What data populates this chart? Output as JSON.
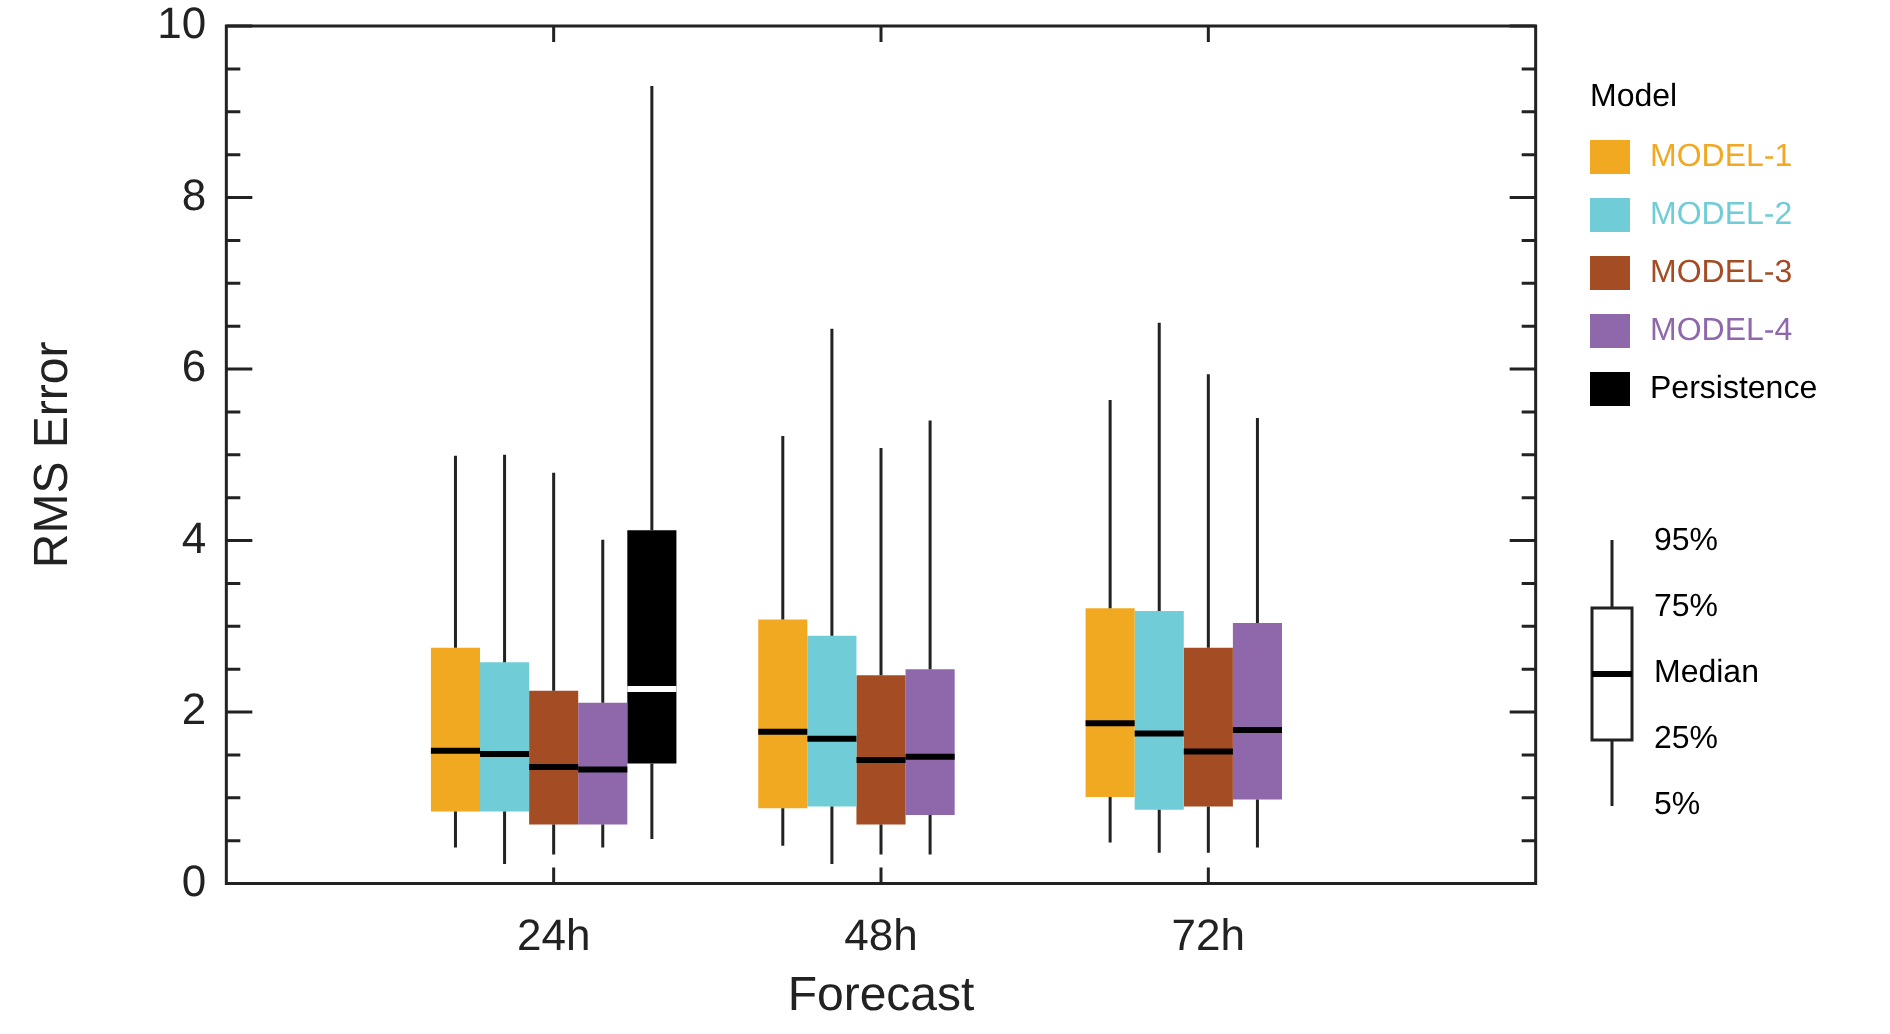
{
  "chart_data": {
    "type": "box",
    "xlabel": "Forecast",
    "ylabel": "RMS Error",
    "legend_title": "Model",
    "legend": "right",
    "categories": [
      "24h",
      "48h",
      "72h"
    ],
    "ylim": [
      0,
      10
    ],
    "yticks": [
      0,
      {
        "value": 0.5,
        "label": null
      },
      2,
      {
        "value": 1,
        "label": null
      },
      {
        "value": 1.5,
        "label": null
      },
      {
        "value": 2.5,
        "label": null
      },
      {
        "value": 3,
        "label": null
      },
      {
        "value": 3.5,
        "label": null
      },
      4,
      {
        "value": 4.5,
        "label": null
      },
      {
        "value": 5,
        "label": null
      },
      {
        "value": 5.5,
        "label": null
      },
      6,
      {
        "value": 6.5,
        "label": null
      },
      {
        "value": 7,
        "label": null
      },
      {
        "value": 7.5,
        "label": null
      },
      8,
      {
        "value": 8.5,
        "label": null
      },
      {
        "value": 9,
        "label": null
      },
      {
        "value": 9.5,
        "label": null
      },
      10
    ],
    "series": [
      {
        "name": "MODEL-1",
        "color": "#f2a922",
        "boxes": [
          {
            "low": 0.42,
            "q1": 0.84,
            "median": 1.55,
            "q3": 2.75,
            "high": 4.99
          },
          {
            "low": 0.44,
            "q1": 0.88,
            "median": 1.77,
            "q3": 3.08,
            "high": 5.22
          },
          {
            "low": 0.48,
            "q1": 1.01,
            "median": 1.87,
            "q3": 3.21,
            "high": 5.64
          }
        ]
      },
      {
        "name": "MODEL-2",
        "color": "#70cdd8",
        "boxes": [
          {
            "low": 0.23,
            "q1": 0.84,
            "median": 1.51,
            "q3": 2.58,
            "high": 5.0
          },
          {
            "low": 0.23,
            "q1": 0.9,
            "median": 1.69,
            "q3": 2.89,
            "high": 6.47
          },
          {
            "low": 0.36,
            "q1": 0.86,
            "median": 1.75,
            "q3": 3.18,
            "high": 6.54
          }
        ]
      },
      {
        "name": "MODEL-3",
        "color": "#a44c24",
        "boxes": [
          {
            "low": 0.34,
            "q1": 0.69,
            "median": 1.36,
            "q3": 2.25,
            "high": 4.79
          },
          {
            "low": 0.34,
            "q1": 0.69,
            "median": 1.44,
            "q3": 2.43,
            "high": 5.08
          },
          {
            "low": 0.36,
            "q1": 0.9,
            "median": 1.54,
            "q3": 2.75,
            "high": 5.94
          }
        ]
      },
      {
        "name": "MODEL-4",
        "color": "#8f68ac",
        "boxes": [
          {
            "low": 0.42,
            "q1": 0.69,
            "median": 1.33,
            "q3": 2.11,
            "high": 4.01
          },
          {
            "low": 0.34,
            "q1": 0.8,
            "median": 1.48,
            "q3": 2.5,
            "high": 5.4
          },
          {
            "low": 0.42,
            "q1": 0.98,
            "median": 1.79,
            "q3": 3.04,
            "high": 5.43
          }
        ]
      },
      {
        "name": "Persistence",
        "color": "#000000",
        "boxes": [
          {
            "low": 0.52,
            "q1": 1.4,
            "median": 2.27,
            "q3": 4.12,
            "high": 9.3
          },
          null,
          null
        ]
      }
    ],
    "annotations": [
      "95%",
      "75%",
      "Median",
      "25%",
      "5%"
    ]
  }
}
